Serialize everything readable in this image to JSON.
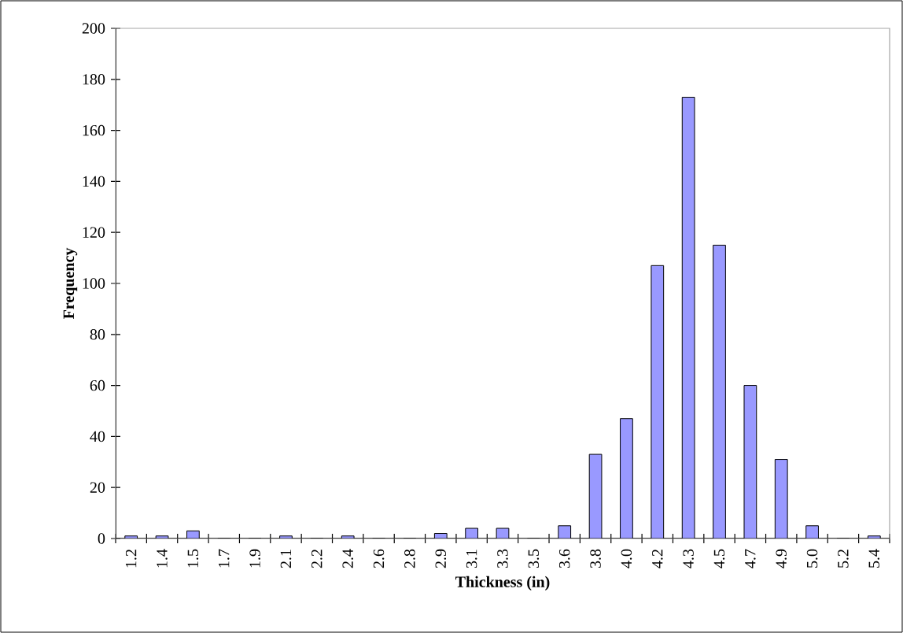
{
  "chart_data": {
    "type": "bar",
    "xlabel": "Thickness (in)",
    "ylabel": "Frequency",
    "categories": [
      "1.2",
      "1.4",
      "1.5",
      "1.7",
      "1.9",
      "2.1",
      "2.2",
      "2.4",
      "2.6",
      "2.8",
      "2.9",
      "3.1",
      "3.3",
      "3.5",
      "3.6",
      "3.8",
      "4.0",
      "4.2",
      "4.3",
      "4.5",
      "4.7",
      "4.9",
      "5.0",
      "5.2",
      "5.4"
    ],
    "values": [
      1,
      1,
      3,
      0,
      0,
      1,
      0,
      1,
      0,
      0,
      2,
      4,
      4,
      0,
      5,
      33,
      47,
      107,
      173,
      115,
      60,
      31,
      5,
      0,
      1
    ],
    "color": "#9999ff",
    "ylim": [
      0,
      200
    ],
    "yticks": [
      0,
      20,
      40,
      60,
      80,
      100,
      120,
      140,
      160,
      180,
      200
    ],
    "grid": false
  }
}
